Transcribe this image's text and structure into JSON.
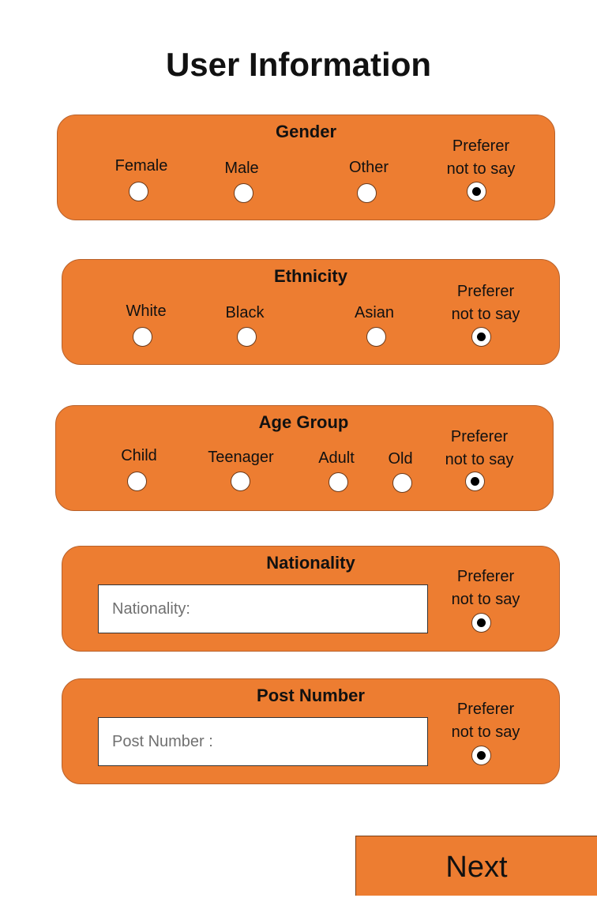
{
  "page_title": "User Information",
  "colors": {
    "accent": "#ed7d31",
    "background": "#ffffff",
    "radio_fill": "#ffffff",
    "radio_dot": "#000000"
  },
  "gender": {
    "title": "Gender",
    "options": [
      "Female",
      "Male",
      "Other"
    ],
    "prefer_line1": "Preferer",
    "prefer_line2": "not to say",
    "selected": "Preferer not to say"
  },
  "ethnicity": {
    "title": "Ethnicity",
    "options": [
      "White",
      "Black",
      "Asian"
    ],
    "prefer_line1": "Preferer",
    "prefer_line2": "not to say",
    "selected": "Preferer not to say"
  },
  "age_group": {
    "title": "Age Group",
    "options": [
      "Child",
      "Teenager",
      "Adult",
      "Old"
    ],
    "prefer_line1": "Preferer",
    "prefer_line2": "not to say",
    "selected": "Preferer not to say"
  },
  "nationality": {
    "title": "Nationality",
    "placeholder": "Nationality:",
    "value": "",
    "prefer_line1": "Preferer",
    "prefer_line2": "not to say",
    "selected": "Preferer not to say"
  },
  "post_number": {
    "title": "Post Number",
    "placeholder": "Post Number :",
    "value": "",
    "prefer_line1": "Preferer",
    "prefer_line2": "not to say",
    "selected": "Preferer not to say"
  },
  "next_label": "Next"
}
